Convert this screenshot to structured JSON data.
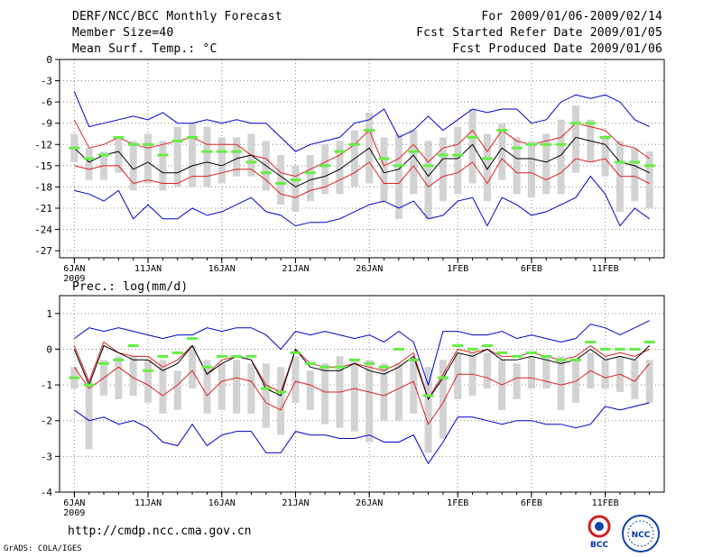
{
  "header": {
    "title": "DERF/NCC/BCC Monthly Forecast",
    "member_size": "Member Size=40",
    "temp_label": "Mean Surf. Temp.: °C",
    "period": "For 2009/01/06-2009/02/14",
    "refer_date": "Fcst Started Refer Date 2009/01/05",
    "produced_date": "Fcst Produced Date 2009/01/06"
  },
  "footer": {
    "url": "http://cmdp.ncc.cma.gov.cn",
    "credit": "GrADS: COLA/IGES",
    "logo_bcc": "BCC",
    "logo_ncc": "NCC"
  },
  "colors": {
    "mean": "#000000",
    "spread": "#dd2222",
    "extremes": "#0000cc",
    "box": "#d3d3d3",
    "median": "#66ee44",
    "grid": "#888888"
  },
  "chart_data": [
    {
      "type": "box-ensemble",
      "title": "Mean Surf. Temp.: °C",
      "ylabel": "°C",
      "ylim": [
        -28,
        0
      ],
      "yticks": [
        0,
        -3,
        -6,
        -9,
        -12,
        -15,
        -18,
        -21,
        -24,
        -27
      ],
      "x_start_day": 1,
      "x_count": 40,
      "xlim": [
        0,
        41
      ],
      "xticks": [
        {
          "x": 1,
          "label": "6JAN"
        },
        {
          "x": 6,
          "label": "11JAN"
        },
        {
          "x": 11,
          "label": "16JAN"
        },
        {
          "x": 16,
          "label": "21JAN"
        },
        {
          "x": 21,
          "label": "26JAN"
        },
        {
          "x": 27,
          "label": "1FEB"
        },
        {
          "x": 32,
          "label": "6FEB"
        },
        {
          "x": 37,
          "label": "11FEB"
        }
      ],
      "year_label": "2009",
      "series": [
        {
          "name": "max",
          "values": [
            -4.5,
            -9.5,
            -9.0,
            -8.5,
            -8.0,
            -8.5,
            -7.5,
            -9.0,
            -9.0,
            -8.5,
            -9.0,
            -8.5,
            -9.0,
            -9.0,
            -11.0,
            -13.0,
            -12.0,
            -11.5,
            -11.0,
            -9.0,
            -8.5,
            -7.0,
            -11.0,
            -10.0,
            -8.0,
            -10.0,
            -8.5,
            -7.0,
            -7.5,
            -7.0,
            -7.0,
            -9.0,
            -8.5,
            -6.0,
            -5.0,
            -5.5,
            -5.0,
            -6.0,
            -8.5,
            -9.5
          ]
        },
        {
          "name": "upper",
          "values": [
            -8.5,
            -12.5,
            -12.0,
            -11.0,
            -12.0,
            -12.5,
            -12.0,
            -11.5,
            -11.0,
            -12.0,
            -12.0,
            -12.0,
            -13.5,
            -14.0,
            -16.0,
            -16.5,
            -15.5,
            -14.5,
            -13.5,
            -12.0,
            -10.0,
            -15.0,
            -14.0,
            -12.0,
            -14.5,
            -12.5,
            -12.0,
            -10.0,
            -13.0,
            -10.0,
            -11.5,
            -12.0,
            -11.5,
            -11.0,
            -9.0,
            -9.5,
            -10.0,
            -12.0,
            -12.5,
            -14.0
          ]
        },
        {
          "name": "mean",
          "values": [
            -12.5,
            -14.5,
            -13.5,
            -13.0,
            -15.5,
            -14.5,
            -16.0,
            -16.0,
            -15.0,
            -14.5,
            -15.0,
            -14.0,
            -13.5,
            -15.0,
            -16.5,
            -18.0,
            -17.0,
            -16.5,
            -15.5,
            -14.0,
            -12.5,
            -16.0,
            -15.5,
            -13.5,
            -16.5,
            -14.0,
            -14.0,
            -12.0,
            -15.5,
            -12.5,
            -14.0,
            -14.0,
            -14.5,
            -13.5,
            -11.0,
            -11.5,
            -12.0,
            -14.5,
            -15.0,
            -16.0
          ]
        },
        {
          "name": "lower",
          "values": [
            -15.0,
            -15.5,
            -15.0,
            -15.0,
            -17.5,
            -17.0,
            -17.5,
            -17.5,
            -16.5,
            -16.5,
            -16.0,
            -15.5,
            -15.5,
            -17.0,
            -19.0,
            -19.5,
            -18.5,
            -18.0,
            -17.0,
            -16.0,
            -14.5,
            -17.5,
            -17.5,
            -15.0,
            -18.0,
            -16.5,
            -16.0,
            -14.5,
            -17.5,
            -14.0,
            -16.0,
            -16.0,
            -17.0,
            -16.0,
            -14.0,
            -14.5,
            -14.0,
            -16.5,
            -16.5,
            -17.5
          ]
        },
        {
          "name": "min",
          "values": [
            -18.5,
            -19.0,
            -20.0,
            -18.5,
            -22.5,
            -20.5,
            -22.5,
            -22.5,
            -21.0,
            -22.0,
            -21.5,
            -20.5,
            -19.5,
            -21.5,
            -22.0,
            -23.5,
            -23.0,
            -23.0,
            -22.5,
            -21.5,
            -20.5,
            -20.0,
            -21.0,
            -20.0,
            -22.5,
            -22.0,
            -20.0,
            -19.5,
            -23.5,
            -19.5,
            -20.5,
            -22.0,
            -21.5,
            -20.5,
            -19.5,
            -16.5,
            -19.0,
            -23.5,
            -21.0,
            -22.5
          ]
        },
        {
          "name": "box_top",
          "values": [
            -10.5,
            -12.5,
            -13.0,
            -11.0,
            -11.5,
            -10.5,
            -11.5,
            -9.5,
            -9.0,
            -9.5,
            -11.0,
            -11.0,
            -10.5,
            -11.5,
            -13.5,
            -15.0,
            -13.5,
            -12.0,
            -11.5,
            -10.0,
            -7.5,
            -11.0,
            -10.5,
            -10.0,
            -11.5,
            -11.0,
            -9.5,
            -7.0,
            -10.5,
            -9.0,
            -11.0,
            -11.5,
            -10.5,
            -8.5,
            -6.5,
            -8.5,
            -11.0,
            -11.5,
            -12.5,
            -13.0
          ]
        },
        {
          "name": "box_bottom",
          "values": [
            -14.5,
            -17.0,
            -17.0,
            -16.0,
            -18.5,
            -17.5,
            -18.5,
            -18.0,
            -18.0,
            -18.0,
            -17.5,
            -16.5,
            -16.5,
            -18.5,
            -20.5,
            -21.5,
            -20.0,
            -19.0,
            -19.0,
            -18.0,
            -17.5,
            -20.0,
            -22.5,
            -19.0,
            -22.5,
            -20.0,
            -19.0,
            -17.5,
            -20.0,
            -17.0,
            -19.0,
            -19.5,
            -19.0,
            -19.0,
            -16.0,
            -14.5,
            -16.5,
            -21.5,
            -20.0,
            -21.0
          ]
        },
        {
          "name": "median",
          "values": [
            -12.5,
            -14.0,
            -13.5,
            -11.0,
            -12.0,
            -12.0,
            -13.5,
            -11.5,
            -11.0,
            -13.0,
            -13.0,
            -13.0,
            -14.5,
            -16.0,
            -17.5,
            -17.0,
            -16.0,
            -15.0,
            -13.0,
            -12.0,
            -10.0,
            -14.0,
            -15.0,
            -13.0,
            -15.0,
            -13.5,
            -13.5,
            -11.0,
            -14.0,
            -10.0,
            -12.5,
            -12.0,
            -12.0,
            -12.0,
            -9.0,
            -9.0,
            -11.0,
            -14.5,
            -14.5,
            -15.0
          ]
        }
      ]
    },
    {
      "type": "box-ensemble",
      "title": "Prec.: log(mm/d)",
      "ylabel": "log(mm/d)",
      "ylim": [
        -4,
        1.5
      ],
      "yticks": [
        1,
        0,
        -1,
        -2,
        -3,
        -4
      ],
      "x_start_day": 1,
      "x_count": 40,
      "xlim": [
        0,
        41
      ],
      "xticks": [
        {
          "x": 1,
          "label": "6JAN"
        },
        {
          "x": 6,
          "label": "11JAN"
        },
        {
          "x": 11,
          "label": "16JAN"
        },
        {
          "x": 16,
          "label": "21JAN"
        },
        {
          "x": 21,
          "label": "26JAN"
        },
        {
          "x": 27,
          "label": "1FEB"
        },
        {
          "x": 32,
          "label": "6FEB"
        },
        {
          "x": 37,
          "label": "11FEB"
        }
      ],
      "year_label": "2009",
      "series": [
        {
          "name": "max",
          "values": [
            0.3,
            0.6,
            0.5,
            0.6,
            0.5,
            0.4,
            0.3,
            0.4,
            0.4,
            0.6,
            0.5,
            0.6,
            0.6,
            0.4,
            0.0,
            0.5,
            0.4,
            0.5,
            0.4,
            0.3,
            0.4,
            0.2,
            0.5,
            0.2,
            -1.0,
            0.5,
            0.5,
            0.4,
            0.4,
            0.5,
            0.3,
            0.4,
            0.3,
            0.2,
            0.3,
            0.7,
            0.6,
            0.4,
            0.6,
            0.8
          ]
        },
        {
          "name": "upper",
          "values": [
            0.1,
            -0.9,
            0.2,
            -0.1,
            -0.2,
            -0.2,
            -0.5,
            -0.3,
            0.1,
            -0.7,
            -0.3,
            -0.2,
            -0.3,
            -1.0,
            -1.2,
            0.0,
            -0.4,
            -0.5,
            -0.5,
            -0.4,
            -0.5,
            -0.6,
            -0.4,
            -0.1,
            -1.4,
            -0.7,
            0.0,
            -0.1,
            0.0,
            -0.2,
            -0.2,
            -0.1,
            -0.2,
            -0.3,
            -0.2,
            0.1,
            -0.2,
            -0.1,
            -0.2,
            0.0
          ]
        },
        {
          "name": "mean",
          "values": [
            0.0,
            -1.0,
            0.1,
            -0.1,
            -0.3,
            -0.3,
            -0.6,
            -0.4,
            0.1,
            -0.7,
            -0.4,
            -0.2,
            -0.3,
            -1.1,
            -1.3,
            0.0,
            -0.5,
            -0.6,
            -0.6,
            -0.4,
            -0.6,
            -0.7,
            -0.5,
            -0.2,
            -1.4,
            -0.8,
            -0.1,
            -0.2,
            0.0,
            -0.3,
            -0.3,
            -0.2,
            -0.3,
            -0.4,
            -0.3,
            0.0,
            -0.3,
            -0.2,
            -0.3,
            0.1
          ]
        },
        {
          "name": "lower",
          "values": [
            -0.5,
            -1.1,
            -0.8,
            -0.5,
            -0.8,
            -1.0,
            -1.3,
            -1.0,
            -0.6,
            -1.3,
            -0.9,
            -0.8,
            -0.9,
            -1.5,
            -1.7,
            -0.9,
            -1.0,
            -1.2,
            -1.2,
            -1.1,
            -1.2,
            -1.3,
            -1.1,
            -0.9,
            -2.1,
            -1.5,
            -0.7,
            -0.7,
            -0.8,
            -1.0,
            -0.8,
            -0.8,
            -0.9,
            -1.0,
            -0.9,
            -0.6,
            -0.8,
            -0.7,
            -0.9,
            -0.4
          ]
        },
        {
          "name": "min",
          "values": [
            -1.7,
            -2.0,
            -1.9,
            -2.1,
            -2.0,
            -2.2,
            -2.6,
            -2.7,
            -2.1,
            -2.7,
            -2.4,
            -2.3,
            -2.3,
            -2.9,
            -2.9,
            -2.3,
            -2.4,
            -2.4,
            -2.5,
            -2.5,
            -2.4,
            -2.6,
            -2.6,
            -2.4,
            -3.2,
            -2.6,
            -1.9,
            -1.9,
            -2.0,
            -2.1,
            -2.0,
            -2.0,
            -2.1,
            -2.1,
            -2.2,
            -2.1,
            -1.6,
            -1.7,
            -1.6,
            -1.5
          ]
        },
        {
          "name": "box_top",
          "values": [
            -0.5,
            -0.9,
            -0.3,
            -0.2,
            -0.2,
            -0.3,
            -0.3,
            -0.6,
            0.1,
            -0.3,
            -0.4,
            -0.3,
            -0.4,
            -0.4,
            -0.5,
            -0.2,
            -0.6,
            -0.4,
            -0.2,
            -0.3,
            -0.3,
            -0.4,
            -0.4,
            -0.3,
            -0.5,
            -0.3,
            -0.1,
            -0.1,
            -0.1,
            -0.3,
            -0.4,
            -0.2,
            -0.2,
            -0.2,
            -0.3,
            -0.1,
            -0.3,
            -0.2,
            -0.3,
            -0.3
          ]
        },
        {
          "name": "box_bottom",
          "values": [
            -1.1,
            -2.8,
            -1.3,
            -1.4,
            -1.3,
            -1.5,
            -1.8,
            -1.7,
            -1.1,
            -1.8,
            -1.7,
            -1.8,
            -1.8,
            -2.2,
            -2.4,
            -1.5,
            -1.7,
            -2.1,
            -2.2,
            -2.3,
            -2.6,
            -2.0,
            -2.0,
            -1.8,
            -2.9,
            -2.5,
            -1.4,
            -1.3,
            -1.1,
            -1.7,
            -1.4,
            -1.1,
            -1.1,
            -1.7,
            -1.5,
            -1.1,
            -1.1,
            -1.2,
            -1.4,
            -1.5
          ]
        },
        {
          "name": "median",
          "values": [
            -0.8,
            -1.0,
            -0.4,
            -0.3,
            0.1,
            -0.6,
            -0.2,
            -0.1,
            0.3,
            -0.5,
            -0.2,
            -0.2,
            -0.2,
            -1.1,
            -1.2,
            -0.1,
            -0.4,
            -0.5,
            -0.5,
            -0.3,
            -0.4,
            -0.5,
            0.0,
            -0.3,
            -1.3,
            -0.8,
            0.1,
            0.0,
            0.1,
            -0.1,
            -0.2,
            -0.1,
            -0.2,
            -0.3,
            -0.3,
            0.2,
            0.0,
            0.0,
            0.0,
            0.2
          ]
        }
      ]
    }
  ]
}
